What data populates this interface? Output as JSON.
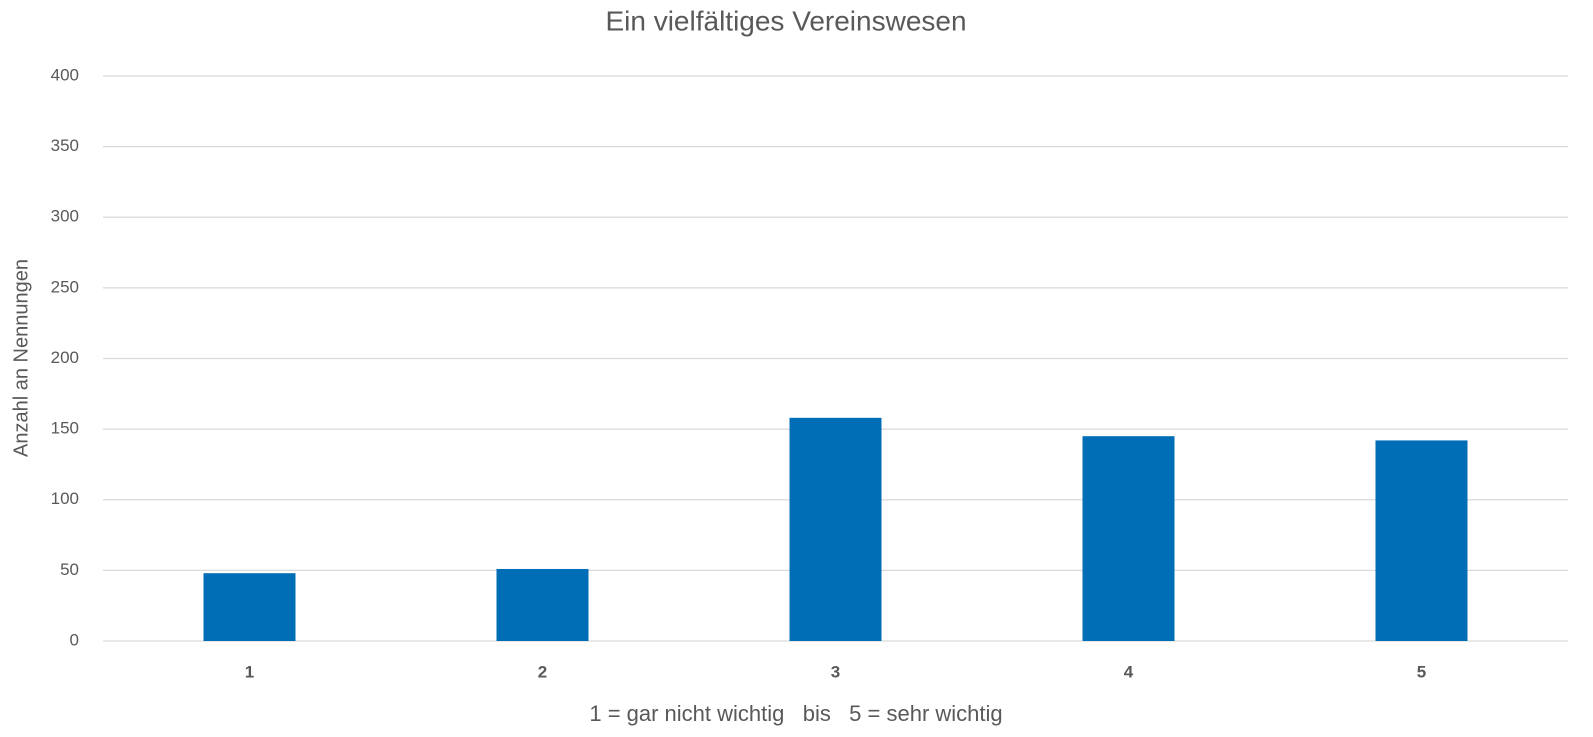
{
  "chart_data": {
    "type": "bar",
    "title": "Ein vielfältiges Vereinswesen",
    "x_label": "1 = gar nicht wichtig   bis   5 = sehr wichtig",
    "y_label": "Anzahl an Nennungen",
    "categories": [
      "1",
      "2",
      "3",
      "4",
      "5"
    ],
    "values": [
      48,
      51,
      158,
      145,
      142
    ],
    "color": "#006eb6",
    "ylim": [
      0,
      400
    ],
    "yticks": [
      0,
      50,
      100,
      150,
      200,
      250,
      300,
      350,
      400
    ],
    "grid": true
  }
}
